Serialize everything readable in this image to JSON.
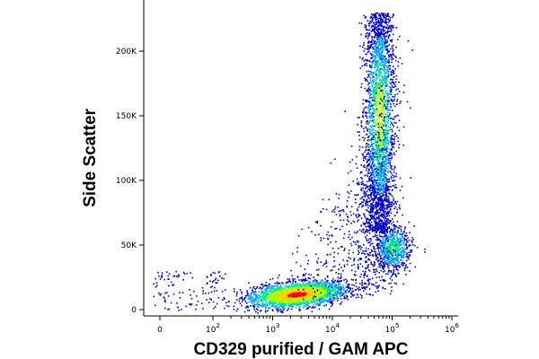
{
  "chart_data": {
    "type": "scatter",
    "xlabel": "CD329 purified / GAM APC",
    "ylabel": "Side Scatter",
    "x_scale": "biexponential",
    "y_scale": "linear",
    "xlim": [
      -30,
      1000000
    ],
    "ylim": [
      0,
      235000
    ],
    "grid": false,
    "x_ticks": [
      {
        "value": 0,
        "base": "0",
        "exp": ""
      },
      {
        "value": 100,
        "base": "10",
        "exp": "2"
      },
      {
        "value": 1000,
        "base": "10",
        "exp": "3"
      },
      {
        "value": 10000,
        "base": "10",
        "exp": "4"
      },
      {
        "value": 100000,
        "base": "10",
        "exp": "5"
      },
      {
        "value": 1000000,
        "base": "10",
        "exp": "6"
      }
    ],
    "y_ticks": [
      {
        "value": 0,
        "label": "0"
      },
      {
        "value": 50000,
        "label": "50K"
      },
      {
        "value": 100000,
        "label": "100K"
      },
      {
        "value": 150000,
        "label": "150K"
      },
      {
        "value": 200000,
        "label": "200K"
      }
    ],
    "colormap": [
      "#0000cc",
      "#00a0ff",
      "#00e0a0",
      "#a0ff00",
      "#ffd000",
      "#ff0000"
    ],
    "populations": [
      {
        "name": "",
        "x_center": 2500,
        "y_center": 12000,
        "events": 2600
      },
      {
        "name": "",
        "x_center": 60000,
        "y_center": 150000,
        "events": 2500
      },
      {
        "name": "",
        "x_center": 100000,
        "y_center": 48000,
        "events": 700
      },
      {
        "name": "",
        "x_center": 15000,
        "y_center": 80000,
        "events": 900
      }
    ]
  }
}
